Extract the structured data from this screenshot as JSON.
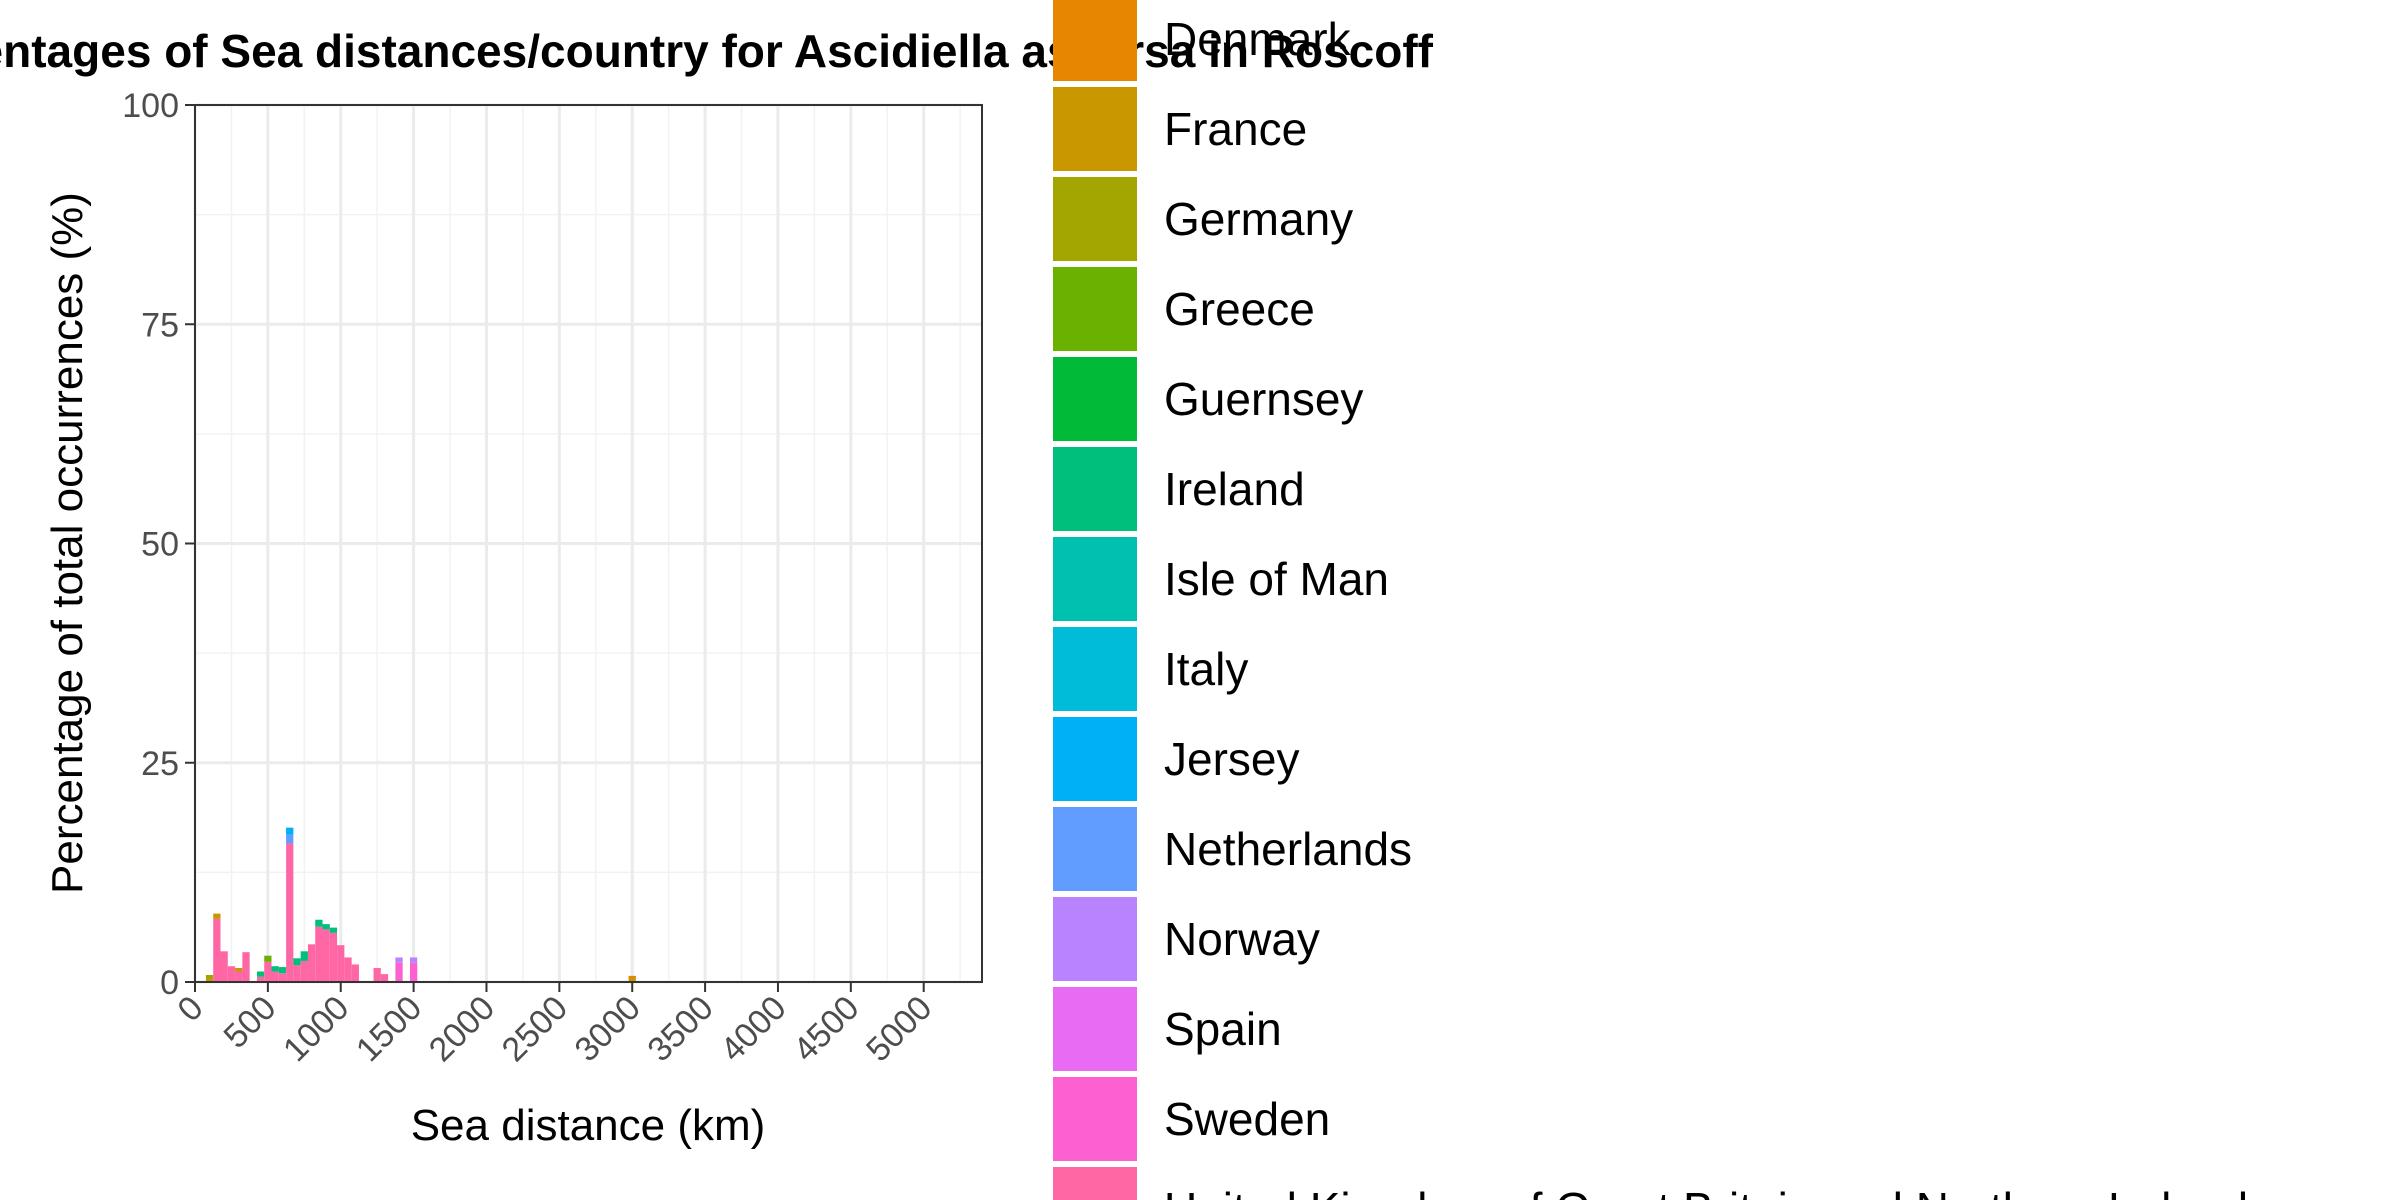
{
  "chart_data": {
    "type": "bar",
    "stacked": true,
    "title": "Stacked histogram of percentages of Sea distances/country for Ascidiella aspersa in Roscoff",
    "xlabel": "Sea distance (km)",
    "ylabel": "Percentage of total occurrences (%)",
    "xlim": [
      0,
      5400
    ],
    "ylim": [
      0,
      100
    ],
    "x_ticks": [
      "0",
      "500",
      "1000",
      "1500",
      "2000",
      "2500",
      "3000",
      "3500",
      "4000",
      "4500",
      "5000"
    ],
    "x_tick_values": [
      0,
      500,
      1000,
      1500,
      2000,
      2500,
      3000,
      3500,
      4000,
      4500,
      5000
    ],
    "y_ticks": [
      "0",
      "25",
      "50",
      "75",
      "100"
    ],
    "y_tick_values": [
      0,
      25,
      50,
      75,
      100
    ],
    "bin_width": 50,
    "grid": true,
    "legend_position": "right",
    "legend": [
      {
        "label": "Denmark",
        "color": "#E58700"
      },
      {
        "label": "France",
        "color": "#C99800"
      },
      {
        "label": "Germany",
        "color": "#A3A500"
      },
      {
        "label": "Greece",
        "color": "#6BB100"
      },
      {
        "label": "Guernsey",
        "color": "#00BA38"
      },
      {
        "label": "Ireland",
        "color": "#00BF7D"
      },
      {
        "label": "Isle of Man",
        "color": "#00C0AF"
      },
      {
        "label": "Italy",
        "color": "#00BCD8"
      },
      {
        "label": "Jersey",
        "color": "#00B0F6"
      },
      {
        "label": "Netherlands",
        "color": "#619CFF"
      },
      {
        "label": "Norway",
        "color": "#B983FF"
      },
      {
        "label": "Spain",
        "color": "#E76BF3"
      },
      {
        "label": "Sweden",
        "color": "#FD61D1"
      },
      {
        "label": "United Kingdom of Great Britain and Northern Ireland",
        "color": "#FF67A4"
      }
    ],
    "bins": [
      {
        "x": 100,
        "segments": [
          {
            "country": "France",
            "value": 0.4
          },
          {
            "country": "Germany",
            "value": 0.4
          }
        ]
      },
      {
        "x": 150,
        "segments": [
          {
            "country": "United Kingdom of Great Britain and Northern Ireland",
            "value": 7.2
          },
          {
            "country": "France",
            "value": 0.6
          }
        ]
      },
      {
        "x": 200,
        "segments": [
          {
            "country": "United Kingdom of Great Britain and Northern Ireland",
            "value": 3.5
          }
        ]
      },
      {
        "x": 250,
        "segments": [
          {
            "country": "United Kingdom of Great Britain and Northern Ireland",
            "value": 1.8
          }
        ]
      },
      {
        "x": 300,
        "segments": [
          {
            "country": "United Kingdom of Great Britain and Northern Ireland",
            "value": 1.2
          },
          {
            "country": "France",
            "value": 0.4
          }
        ]
      },
      {
        "x": 350,
        "segments": [
          {
            "country": "United Kingdom of Great Britain and Northern Ireland",
            "value": 3.4
          }
        ]
      },
      {
        "x": 450,
        "segments": [
          {
            "country": "United Kingdom of Great Britain and Northern Ireland",
            "value": 0.6
          },
          {
            "country": "Ireland",
            "value": 0.6
          }
        ]
      },
      {
        "x": 500,
        "segments": [
          {
            "country": "United Kingdom of Great Britain and Northern Ireland",
            "value": 2.3
          },
          {
            "country": "Greece",
            "value": 0.7
          }
        ]
      },
      {
        "x": 550,
        "segments": [
          {
            "country": "United Kingdom of Great Britain and Northern Ireland",
            "value": 1.2
          },
          {
            "country": "Ireland",
            "value": 0.6
          }
        ]
      },
      {
        "x": 600,
        "segments": [
          {
            "country": "United Kingdom of Great Britain and Northern Ireland",
            "value": 1.0
          },
          {
            "country": "Ireland",
            "value": 0.7
          }
        ]
      },
      {
        "x": 650,
        "segments": [
          {
            "country": "United Kingdom of Great Britain and Northern Ireland",
            "value": 15.8
          },
          {
            "country": "Netherlands",
            "value": 1.0
          },
          {
            "country": "Jersey",
            "value": 0.8
          }
        ]
      },
      {
        "x": 700,
        "segments": [
          {
            "country": "United Kingdom of Great Britain and Northern Ireland",
            "value": 1.9
          },
          {
            "country": "Ireland",
            "value": 0.8
          }
        ]
      },
      {
        "x": 750,
        "segments": [
          {
            "country": "United Kingdom of Great Britain and Northern Ireland",
            "value": 2.4
          },
          {
            "country": "Ireland",
            "value": 1.1
          }
        ]
      },
      {
        "x": 800,
        "segments": [
          {
            "country": "United Kingdom of Great Britain and Northern Ireland",
            "value": 4.3
          }
        ]
      },
      {
        "x": 850,
        "segments": [
          {
            "country": "United Kingdom of Great Britain and Northern Ireland",
            "value": 6.3
          },
          {
            "country": "Ireland",
            "value": 0.8
          }
        ]
      },
      {
        "x": 900,
        "segments": [
          {
            "country": "United Kingdom of Great Britain and Northern Ireland",
            "value": 6.0
          },
          {
            "country": "Ireland",
            "value": 0.6
          }
        ]
      },
      {
        "x": 950,
        "segments": [
          {
            "country": "United Kingdom of Great Britain and Northern Ireland",
            "value": 5.6
          },
          {
            "country": "Ireland",
            "value": 0.6
          }
        ]
      },
      {
        "x": 1000,
        "segments": [
          {
            "country": "United Kingdom of Great Britain and Northern Ireland",
            "value": 4.2
          }
        ]
      },
      {
        "x": 1050,
        "segments": [
          {
            "country": "United Kingdom of Great Britain and Northern Ireland",
            "value": 2.8
          }
        ]
      },
      {
        "x": 1100,
        "segments": [
          {
            "country": "United Kingdom of Great Britain and Northern Ireland",
            "value": 2.0
          }
        ]
      },
      {
        "x": 1250,
        "segments": [
          {
            "country": "United Kingdom of Great Britain and Northern Ireland",
            "value": 1.6
          }
        ]
      },
      {
        "x": 1300,
        "segments": [
          {
            "country": "United Kingdom of Great Britain and Northern Ireland",
            "value": 0.9
          }
        ]
      },
      {
        "x": 1400,
        "segments": [
          {
            "country": "Sweden",
            "value": 2.2
          },
          {
            "country": "Norway",
            "value": 0.6
          }
        ]
      },
      {
        "x": 1500,
        "segments": [
          {
            "country": "Sweden",
            "value": 2.2
          },
          {
            "country": "Norway",
            "value": 0.6
          }
        ]
      },
      {
        "x": 3000,
        "segments": [
          {
            "country": "France",
            "value": 0.4
          },
          {
            "country": "Denmark",
            "value": 0.3
          }
        ]
      }
    ]
  }
}
